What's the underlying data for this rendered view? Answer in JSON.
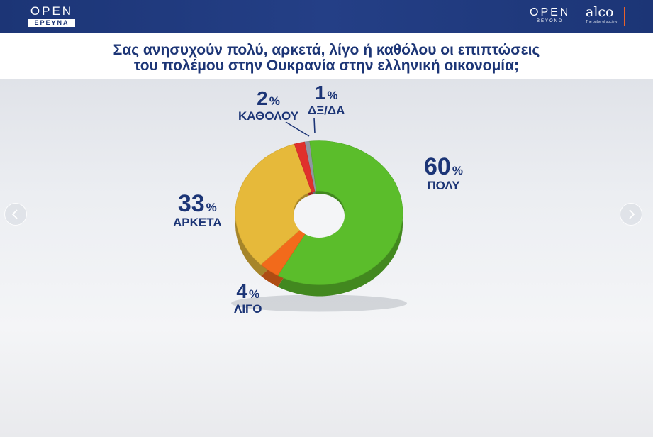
{
  "header": {
    "brand_left_top": "OPEN",
    "brand_left_bottom": "ΕΡΕΥΝΑ",
    "brand_right_top": "OPEN",
    "brand_right_sub": "BEYOND",
    "partner_name": "alco",
    "partner_tagline": "The pulse of society"
  },
  "question": {
    "line1": "Σας ανησυχούν πολύ, αρκετά, λίγο ή καθόλου οι επιπτώσεις",
    "line2": "του πολέμου στην Ουκρανία στην ελληνική οικονομία;"
  },
  "nav": {
    "prev_icon": "chevron-left-icon",
    "next_icon": "chevron-right-icon"
  },
  "chart_data": {
    "type": "pie",
    "style": "donut-3d",
    "categories": [
      "ΠΟΛΥ",
      "ΛΙΓΟ",
      "ΑΡΚΕΤΑ",
      "ΚΑΘΟΛΟΥ",
      "ΔΞ/ΔΑ"
    ],
    "values": [
      60,
      4,
      33,
      2,
      1
    ],
    "unit": "%",
    "colors": [
      "#5bbd2b",
      "#f26a1b",
      "#e6b93a",
      "#e0302c",
      "#8f97a3"
    ],
    "labels": [
      {
        "category": "ΠΟΛΥ",
        "value": "60",
        "unit": "%"
      },
      {
        "category": "ΛΙΓΟ",
        "value": "4",
        "unit": "%"
      },
      {
        "category": "ΑΡΚΕΤΑ",
        "value": "33",
        "unit": "%"
      },
      {
        "category": "ΚΑΘΟΛΟΥ",
        "value": "2",
        "unit": "%"
      },
      {
        "category": "ΔΞ/ΔΑ",
        "value": "1",
        "unit": "%"
      }
    ]
  }
}
